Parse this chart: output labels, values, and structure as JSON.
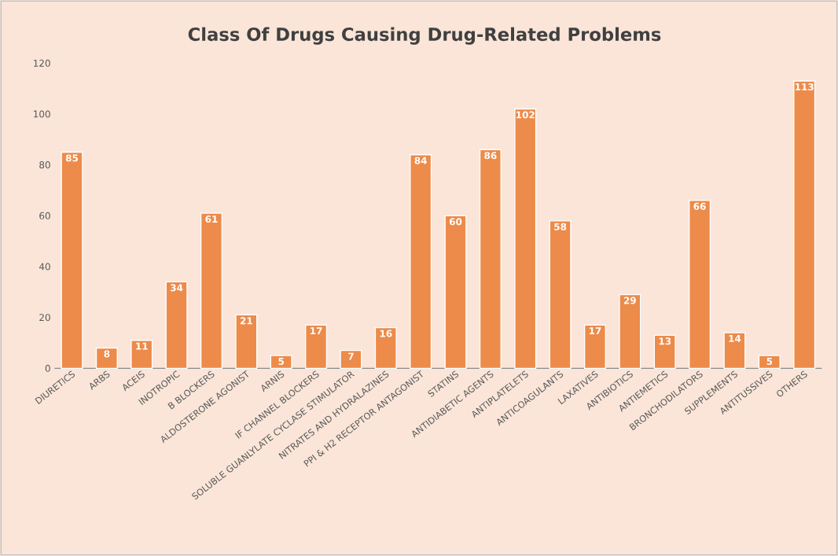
{
  "chart_data": {
    "type": "bar",
    "title": "Class Of Drugs Causing Drug-Related Problems",
    "categories": [
      "DIURETICS",
      "ARBS",
      "ACEIS",
      "INOTROPIC",
      "B BLOCKERS",
      "ALDOSTERONE AGONIST",
      "ARNIS",
      "IF CHANNEL BLOCKERS",
      "SOLUBLE GUANLYLATE CYCLASE STIMULATOR",
      "NITRATES AND HYDRALAZINES",
      "PPI & H2 RECEPTOR ANTAGONIST",
      "STATINS",
      "ANTIDIABETIC AGENTS",
      "ANTIPLATELETS",
      "ANTICOAGULANTS",
      "LAXATIVES",
      "ANTIBIOTICS",
      "ANTIEMETICS",
      "BRONCHODILATORS",
      "SUPPLEMENTS",
      "ANTITUSSIVES",
      "OTHERS"
    ],
    "values": [
      85,
      8,
      11,
      34,
      61,
      21,
      5,
      17,
      7,
      16,
      84,
      60,
      86,
      102,
      58,
      17,
      29,
      13,
      66,
      14,
      5,
      113
    ],
    "color": "#ed8b4a",
    "data_labels": true,
    "ylim": [
      0,
      120
    ],
    "yticks": [
      0,
      20,
      40,
      60,
      80,
      100,
      120
    ]
  }
}
